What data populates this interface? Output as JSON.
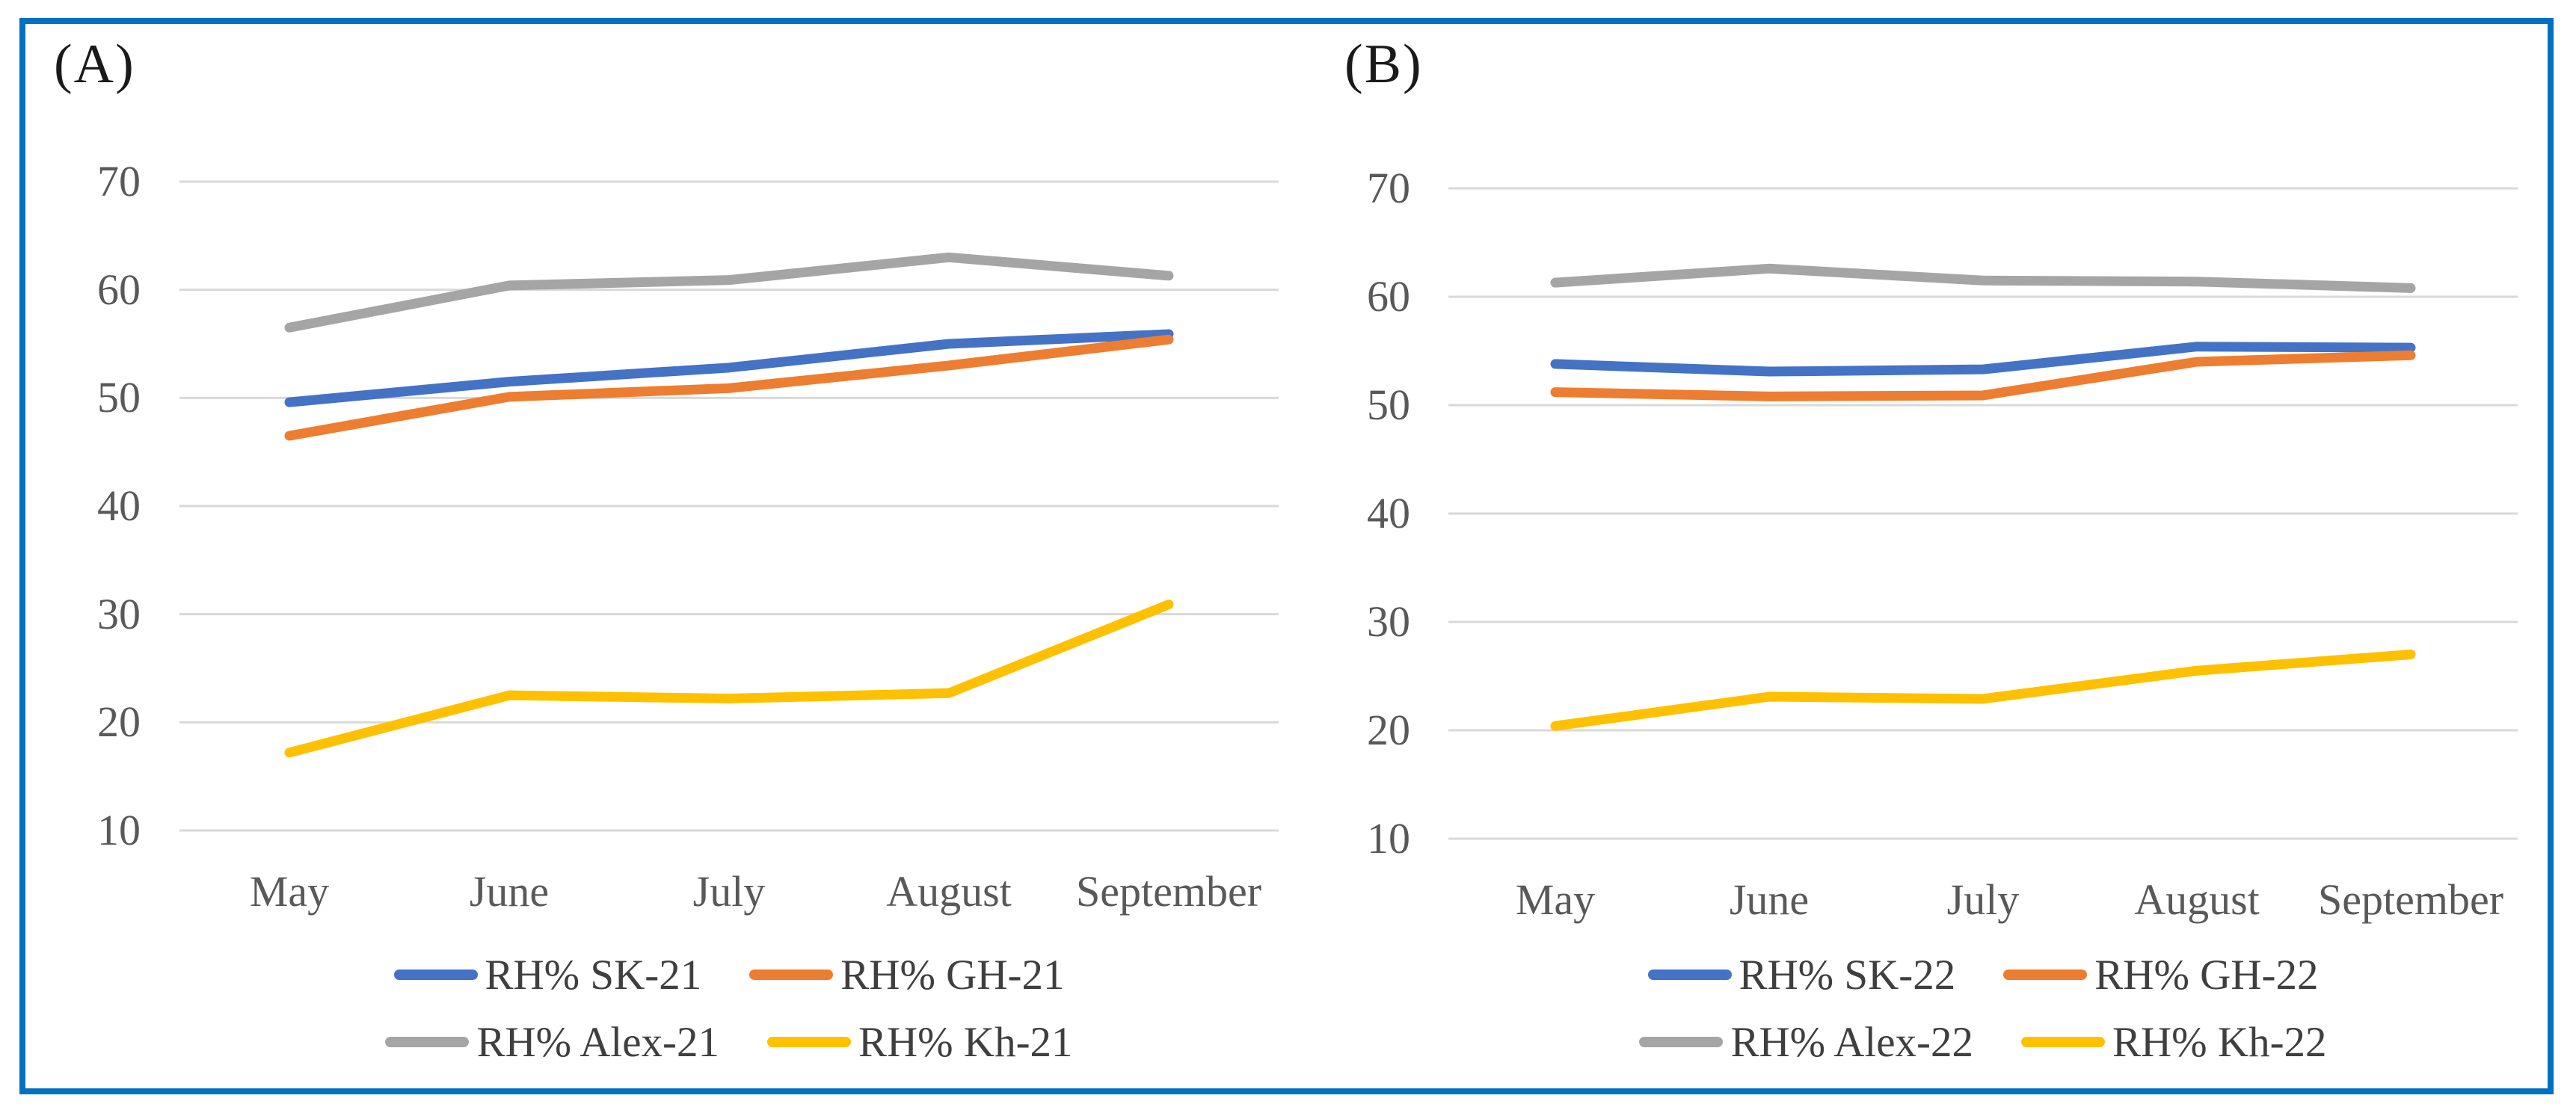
{
  "figure": {
    "border_color": "#0070C0",
    "background": "#ffffff"
  },
  "colors": {
    "gridline": "#D9D9D9",
    "axis_text": "#595959",
    "legend_text": "#3f3f3f",
    "panel_label_text": "#1a1a1a"
  },
  "chart_data": [
    {
      "type": "line",
      "panel_label": "(A)",
      "categories": [
        "May",
        "June",
        "July",
        "August",
        "September"
      ],
      "y_ticks": [
        70,
        60,
        50,
        40,
        30,
        20,
        10
      ],
      "ylim": [
        10,
        70
      ],
      "grid": true,
      "legend_position": "bottom",
      "series": [
        {
          "name": "RH% SK-21",
          "color": "#4472C4",
          "values": [
            49.6,
            51.5,
            52.8,
            55.0,
            55.9
          ]
        },
        {
          "name": "RH% GH-21",
          "color": "#ED7D31",
          "values": [
            46.5,
            50.1,
            50.9,
            53.0,
            55.4
          ]
        },
        {
          "name": "RH% Alex-21",
          "color": "#A5A5A5",
          "values": [
            56.5,
            60.4,
            60.9,
            63.0,
            61.3
          ]
        },
        {
          "name": "RH% Kh-21",
          "color": "#FFC000",
          "values": [
            17.2,
            22.5,
            22.2,
            22.7,
            30.9
          ]
        }
      ],
      "legend_rows": [
        [
          "RH% SK-21",
          "RH% GH-21"
        ],
        [
          "RH% Alex-21",
          "RH% Kh-21"
        ]
      ]
    },
    {
      "type": "line",
      "panel_label": "(B)",
      "categories": [
        "May",
        "June",
        "July",
        "August",
        "September"
      ],
      "y_ticks": [
        70,
        60,
        50,
        40,
        30,
        20,
        10
      ],
      "ylim": [
        10,
        70
      ],
      "grid": true,
      "legend_position": "bottom",
      "series": [
        {
          "name": "RH% SK-22",
          "color": "#4472C4",
          "values": [
            53.8,
            53.1,
            53.3,
            55.4,
            55.3
          ]
        },
        {
          "name": "RH% GH-22",
          "color": "#ED7D31",
          "values": [
            51.2,
            50.8,
            50.9,
            54.0,
            54.6
          ]
        },
        {
          "name": "RH% Alex-22",
          "color": "#A5A5A5",
          "values": [
            61.3,
            62.6,
            61.5,
            61.4,
            60.8
          ]
        },
        {
          "name": "RH% Kh-22",
          "color": "#FFC000",
          "values": [
            20.4,
            23.1,
            22.9,
            25.5,
            27.0
          ]
        }
      ],
      "legend_rows": [
        [
          "RH% SK-22",
          "RH% GH-22"
        ],
        [
          "RH% Alex-22",
          "RH% Kh-22"
        ]
      ]
    }
  ]
}
